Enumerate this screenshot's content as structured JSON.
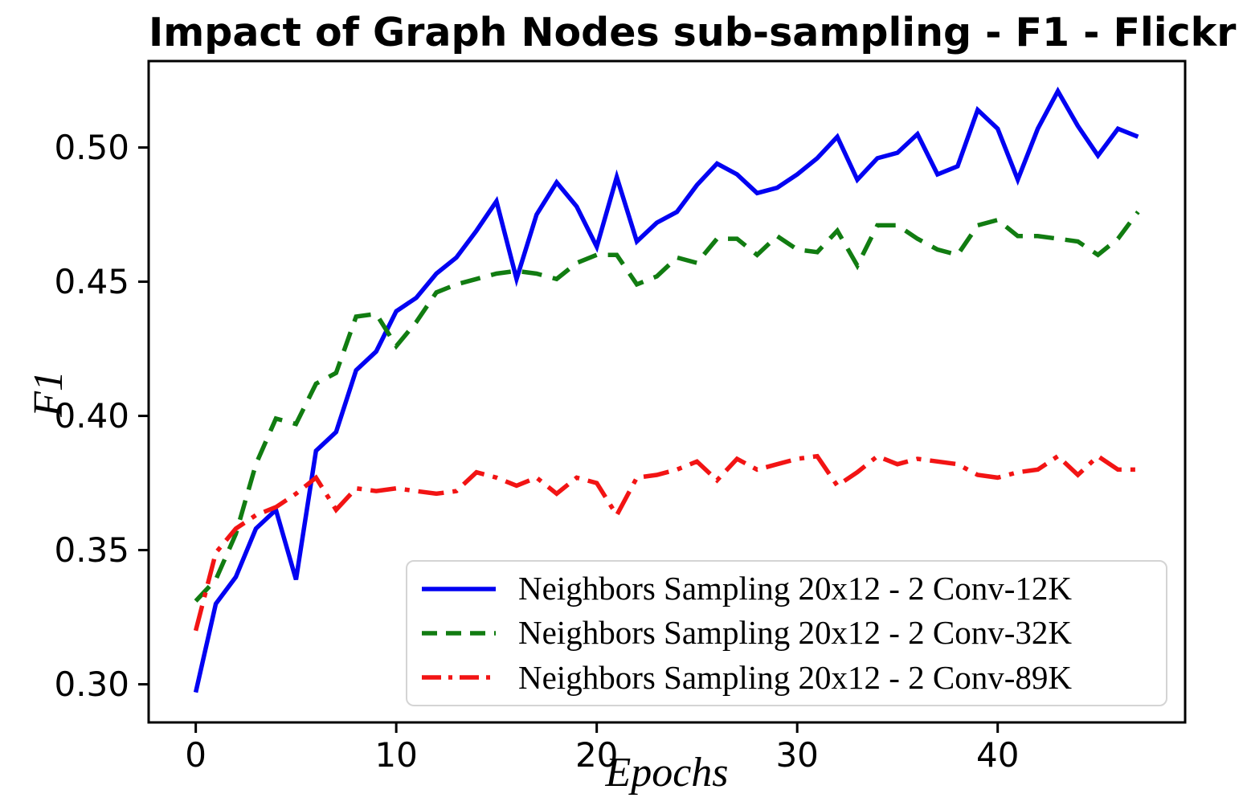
{
  "chart_data": {
    "type": "line",
    "title": "Impact of Graph Nodes sub-sampling - F1 - Flickr",
    "xlabel": "Epochs",
    "ylabel": "F1",
    "xlim": [
      -2.35,
      49.35
    ],
    "ylim": [
      0.2858,
      0.5322
    ],
    "grid": false,
    "legend_position": "lower right",
    "xticks": [
      0,
      10,
      20,
      30,
      40
    ],
    "xtick_labels": [
      "0",
      "10",
      "20",
      "30",
      "40"
    ],
    "yticks": [
      0.3,
      0.35,
      0.4,
      0.45,
      0.5
    ],
    "ytick_labels": [
      "0.30",
      "0.35",
      "0.40",
      "0.45",
      "0.50"
    ],
    "x": [
      0,
      1,
      2,
      3,
      4,
      5,
      6,
      7,
      8,
      9,
      10,
      11,
      12,
      13,
      14,
      15,
      16,
      17,
      18,
      19,
      20,
      21,
      22,
      23,
      24,
      25,
      26,
      27,
      28,
      29,
      30,
      31,
      32,
      33,
      34,
      35,
      36,
      37,
      38,
      39,
      40,
      41,
      42,
      43,
      44,
      45,
      46,
      47
    ],
    "series": [
      {
        "name": "Neighbors Sampling 20x12 - 2 Conv-12K",
        "color": "#0202f2",
        "style": "solid",
        "values": [
          0.297,
          0.33,
          0.34,
          0.358,
          0.365,
          0.339,
          0.387,
          0.394,
          0.417,
          0.424,
          0.439,
          0.444,
          0.453,
          0.459,
          0.469,
          0.48,
          0.451,
          0.475,
          0.487,
          0.478,
          0.463,
          0.489,
          0.465,
          0.472,
          0.476,
          0.486,
          0.494,
          0.49,
          0.483,
          0.485,
          0.49,
          0.496,
          0.504,
          0.488,
          0.496,
          0.498,
          0.505,
          0.49,
          0.493,
          0.514,
          0.507,
          0.488,
          0.507,
          0.521,
          0.508,
          0.497,
          0.507,
          0.504
        ]
      },
      {
        "name": "Neighbors Sampling 20x12 - 2 Conv-32K",
        "color": "#117c11",
        "style": "dashed",
        "values": [
          0.331,
          0.339,
          0.356,
          0.382,
          0.399,
          0.397,
          0.412,
          0.416,
          0.437,
          0.438,
          0.426,
          0.435,
          0.446,
          0.449,
          0.451,
          0.453,
          0.454,
          0.453,
          0.451,
          0.457,
          0.46,
          0.46,
          0.449,
          0.452,
          0.459,
          0.457,
          0.466,
          0.466,
          0.46,
          0.467,
          0.462,
          0.461,
          0.469,
          0.456,
          0.471,
          0.471,
          0.466,
          0.462,
          0.46,
          0.471,
          0.473,
          0.467,
          0.467,
          0.466,
          0.465,
          0.46,
          0.466,
          0.476
        ]
      },
      {
        "name": "Neighbors Sampling 20x12 - 2 Conv-89K",
        "color": "#f21414",
        "style": "dashdot",
        "values": [
          0.32,
          0.349,
          0.358,
          0.363,
          0.366,
          0.371,
          0.377,
          0.365,
          0.373,
          0.372,
          0.373,
          0.372,
          0.371,
          0.372,
          0.379,
          0.377,
          0.374,
          0.377,
          0.371,
          0.377,
          0.375,
          0.363,
          0.377,
          0.378,
          0.38,
          0.383,
          0.376,
          0.384,
          0.38,
          0.382,
          0.384,
          0.385,
          0.374,
          0.379,
          0.385,
          0.382,
          0.384,
          0.383,
          0.382,
          0.378,
          0.377,
          0.379,
          0.38,
          0.385,
          0.378,
          0.385,
          0.38,
          0.38
        ]
      }
    ]
  }
}
